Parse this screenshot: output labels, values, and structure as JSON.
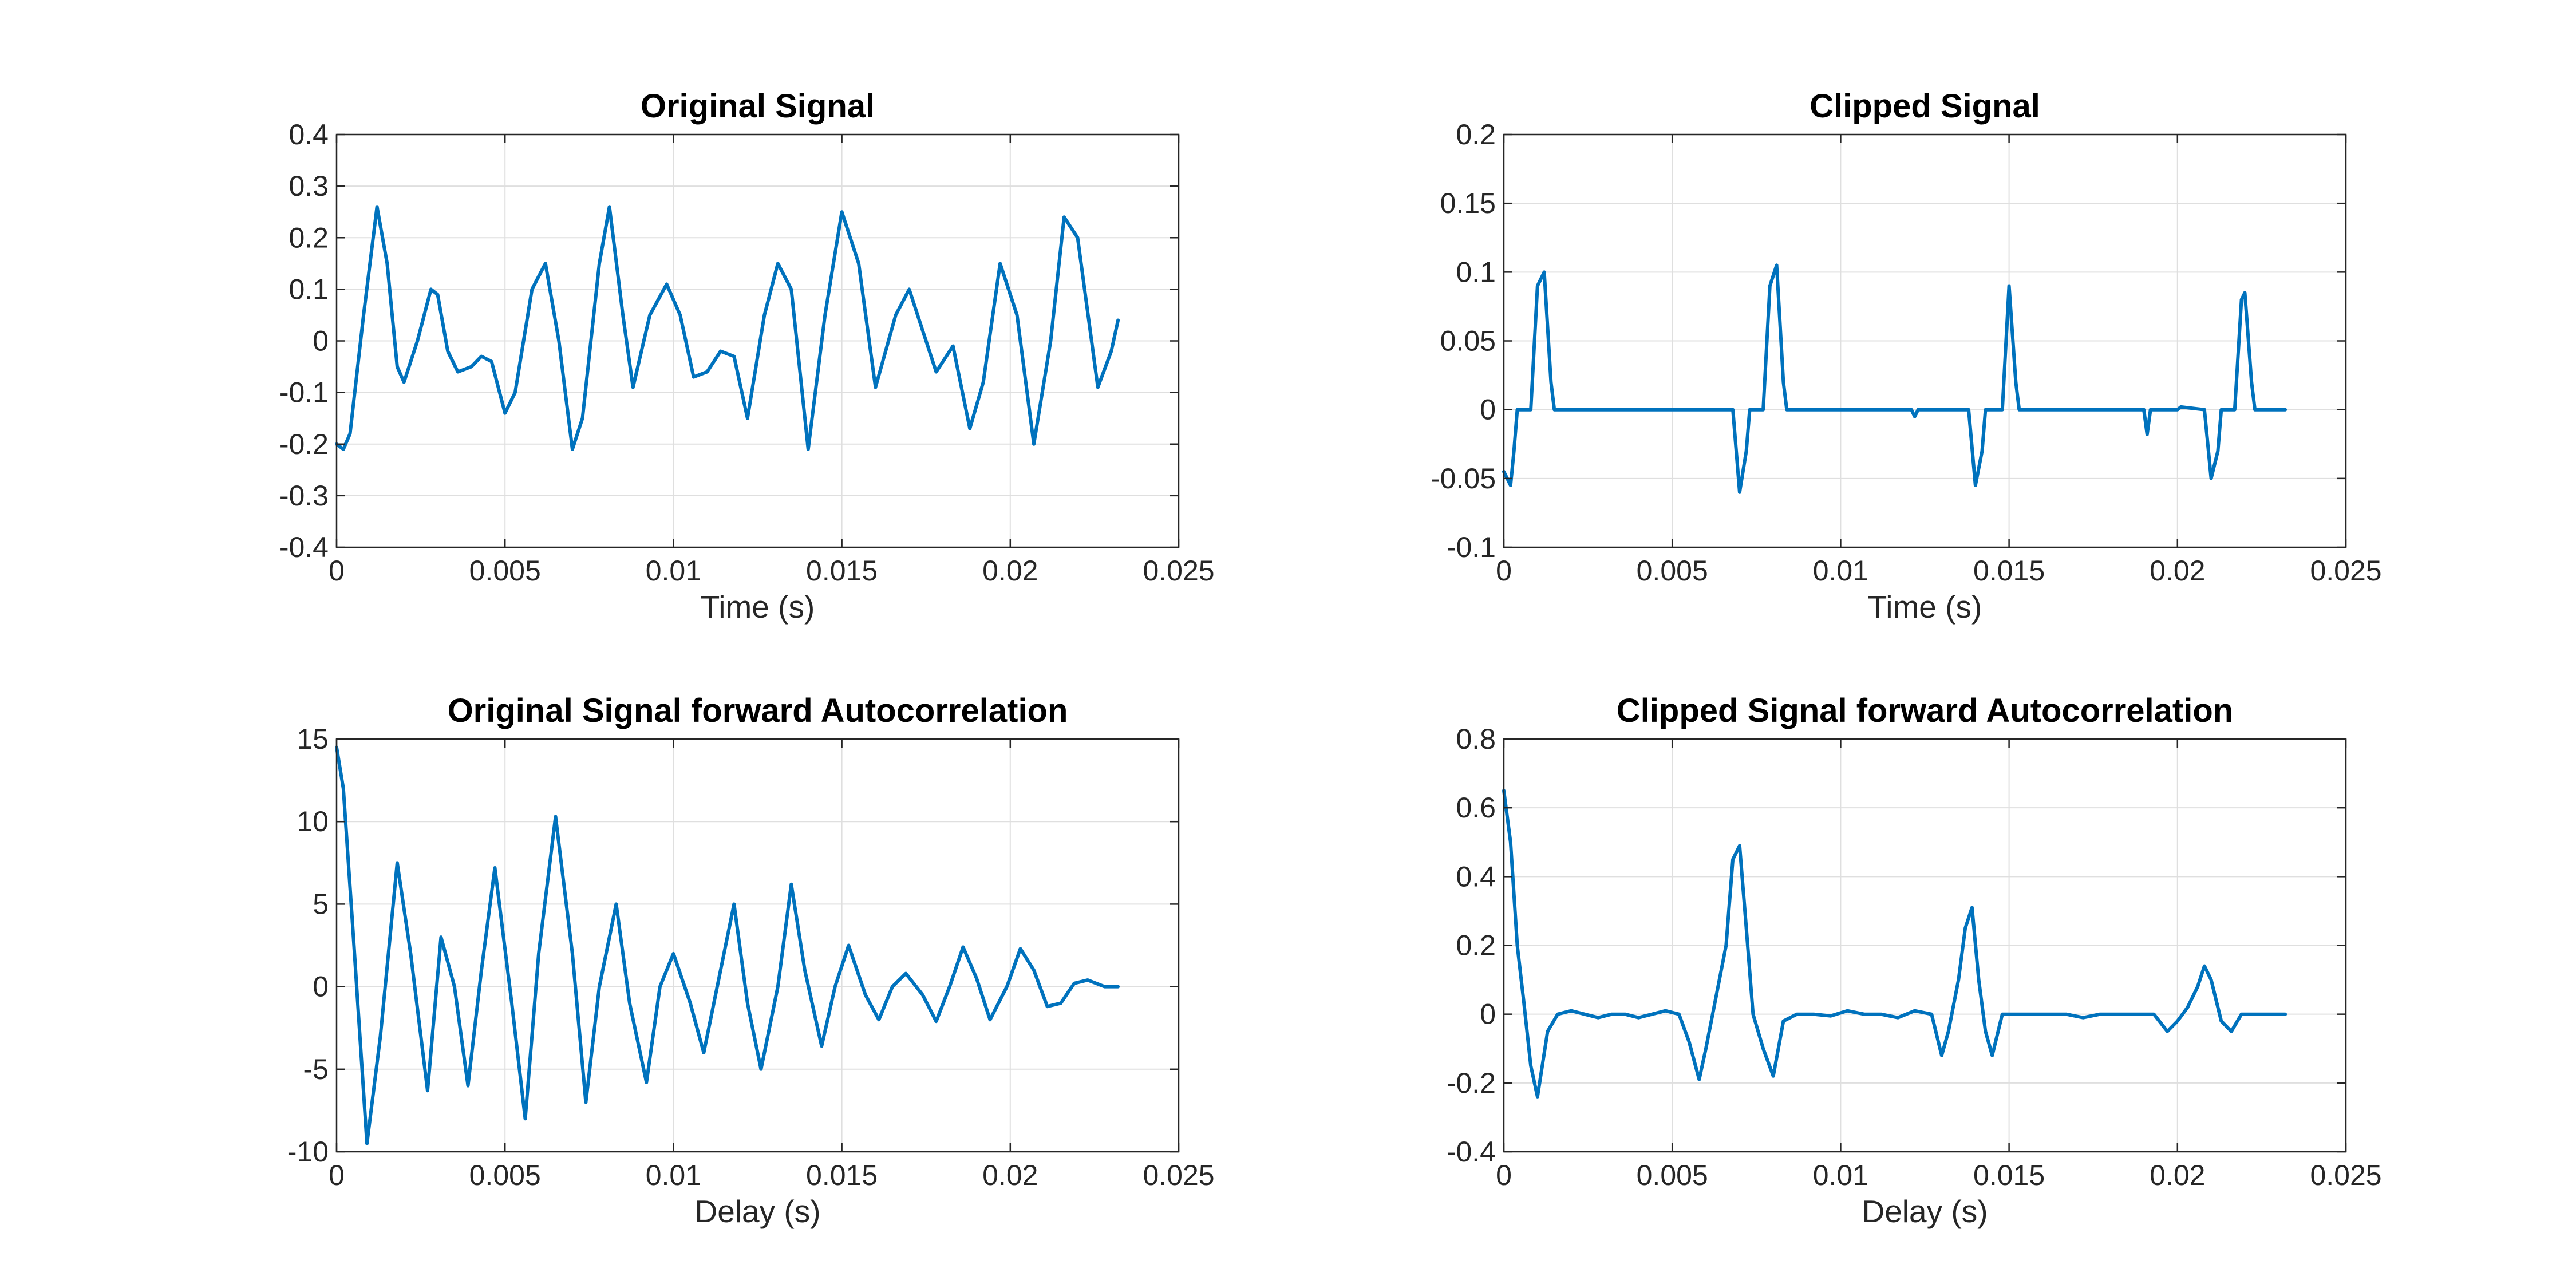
{
  "colors": {
    "series": "#0072bd"
  },
  "chart_data": [
    {
      "type": "line",
      "title": "Original Signal",
      "xlabel": "Time (s)",
      "ylabel": "",
      "xlim": [
        0,
        0.025
      ],
      "ylim": [
        -0.4,
        0.4
      ],
      "xticks": [
        0,
        0.005,
        0.01,
        0.015,
        0.02,
        0.025
      ],
      "yticks": [
        -0.4,
        -0.3,
        -0.2,
        -0.1,
        0,
        0.1,
        0.2,
        0.3,
        0.4
      ],
      "xtick_labels": [
        "0",
        "0.005",
        "0.01",
        "0.015",
        "0.02",
        "0.025"
      ],
      "ytick_labels": [
        "-0.4",
        "-0.3",
        "-0.2",
        "-0.1",
        "0",
        "0.1",
        "0.2",
        "0.3",
        "0.4"
      ],
      "grid": true,
      "series": [
        {
          "x": [
            0,
            0.0002,
            0.0004,
            0.0008,
            0.0012,
            0.0015,
            0.0018,
            0.002,
            0.0024,
            0.0028,
            0.003,
            0.0033,
            0.0036,
            0.004,
            0.0043,
            0.0046,
            0.005,
            0.0053,
            0.0058,
            0.0062,
            0.0066,
            0.007,
            0.0073,
            0.0078,
            0.0081,
            0.0085,
            0.0088,
            0.0093,
            0.0098,
            0.0102,
            0.0106,
            0.011,
            0.0114,
            0.0118,
            0.0122,
            0.0127,
            0.0131,
            0.0135,
            0.014,
            0.0145,
            0.015,
            0.0155,
            0.016,
            0.0166,
            0.017,
            0.0175,
            0.0178,
            0.0183,
            0.0188,
            0.0192,
            0.0197,
            0.0202,
            0.0207,
            0.0212,
            0.0216,
            0.022,
            0.0226,
            0.023,
            0.0232
          ],
          "y": [
            -0.2,
            -0.21,
            -0.18,
            0.05,
            0.26,
            0.15,
            -0.05,
            -0.08,
            0.0,
            0.1,
            0.09,
            -0.02,
            -0.06,
            -0.05,
            -0.03,
            -0.04,
            -0.14,
            -0.1,
            0.1,
            0.15,
            0.0,
            -0.21,
            -0.15,
            0.15,
            0.26,
            0.05,
            -0.09,
            0.05,
            0.11,
            0.05,
            -0.07,
            -0.06,
            -0.02,
            -0.03,
            -0.15,
            0.05,
            0.15,
            0.1,
            -0.21,
            0.05,
            0.25,
            0.15,
            -0.09,
            0.05,
            0.1,
            0.0,
            -0.06,
            -0.01,
            -0.17,
            -0.08,
            0.15,
            0.05,
            -0.2,
            0.0,
            0.24,
            0.2,
            -0.09,
            -0.02,
            0.04
          ]
        }
      ]
    },
    {
      "type": "line",
      "title": "Clipped Signal",
      "xlabel": "Time (s)",
      "ylabel": "",
      "xlim": [
        0,
        0.025
      ],
      "ylim": [
        -0.1,
        0.2
      ],
      "xticks": [
        0,
        0.005,
        0.01,
        0.015,
        0.02,
        0.025
      ],
      "yticks": [
        -0.1,
        -0.05,
        0,
        0.05,
        0.1,
        0.15,
        0.2
      ],
      "xtick_labels": [
        "0",
        "0.005",
        "0.01",
        "0.015",
        "0.02",
        "0.025"
      ],
      "ytick_labels": [
        "-0.1",
        "-0.05",
        "0",
        "0.05",
        "0.1",
        "0.15",
        "0.2"
      ],
      "grid": true,
      "series": [
        {
          "x": [
            0,
            0.0002,
            0.0003,
            0.0004,
            0.0008,
            0.001,
            0.0012,
            0.0014,
            0.0015,
            0.0068,
            0.007,
            0.0072,
            0.0073,
            0.0077,
            0.0079,
            0.0081,
            0.0083,
            0.0084,
            0.0121,
            0.0122,
            0.0123,
            0.0138,
            0.014,
            0.0142,
            0.0143,
            0.0148,
            0.015,
            0.0152,
            0.0153,
            0.019,
            0.0191,
            0.0192,
            0.02,
            0.0201,
            0.0208,
            0.021,
            0.0212,
            0.0213,
            0.0217,
            0.0219,
            0.022,
            0.0222,
            0.0223,
            0.0232
          ],
          "y": [
            -0.045,
            -0.055,
            -0.03,
            0,
            0,
            0.09,
            0.1,
            0.02,
            0,
            0,
            -0.06,
            -0.03,
            0,
            0,
            0.09,
            0.105,
            0.02,
            0,
            0,
            -0.005,
            0,
            0,
            -0.055,
            -0.03,
            0,
            0,
            0.09,
            0.02,
            0,
            0,
            -0.018,
            0,
            0,
            0.002,
            0,
            -0.05,
            -0.03,
            0,
            0,
            0.08,
            0.085,
            0.02,
            0,
            0
          ]
        }
      ]
    },
    {
      "type": "line",
      "title": "Original Signal forward Autocorrelation",
      "xlabel": "Delay (s)",
      "ylabel": "",
      "xlim": [
        0,
        0.025
      ],
      "ylim": [
        -10,
        15
      ],
      "xticks": [
        0,
        0.005,
        0.01,
        0.015,
        0.02,
        0.025
      ],
      "yticks": [
        -10,
        -5,
        0,
        5,
        10,
        15
      ],
      "xtick_labels": [
        "0",
        "0.005",
        "0.01",
        "0.015",
        "0.02",
        "0.025"
      ],
      "ytick_labels": [
        "-10",
        "-5",
        "0",
        "5",
        "10",
        "15"
      ],
      "grid": true,
      "series": [
        {
          "x": [
            0,
            0.0002,
            0.0005,
            0.0009,
            0.0013,
            0.0018,
            0.0022,
            0.0027,
            0.0031,
            0.0035,
            0.0039,
            0.0043,
            0.0047,
            0.0052,
            0.0056,
            0.006,
            0.0065,
            0.007,
            0.0074,
            0.0078,
            0.0083,
            0.0087,
            0.0092,
            0.0096,
            0.01,
            0.0105,
            0.0109,
            0.0113,
            0.0118,
            0.0122,
            0.0126,
            0.0131,
            0.0135,
            0.0139,
            0.0144,
            0.0148,
            0.0152,
            0.0157,
            0.0161,
            0.0165,
            0.0169,
            0.0174,
            0.0178,
            0.0182,
            0.0186,
            0.019,
            0.0194,
            0.0199,
            0.0203,
            0.0207,
            0.0211,
            0.0215,
            0.0219,
            0.0223,
            0.0228,
            0.0232
          ],
          "y": [
            14.5,
            12,
            3,
            -9.5,
            -3,
            7.5,
            2,
            -6.3,
            3,
            0,
            -6,
            1,
            7.2,
            -1,
            -8,
            2,
            10.3,
            2,
            -7,
            0,
            5,
            -1,
            -5.8,
            0,
            2,
            -1,
            -4,
            0,
            5,
            -1,
            -5,
            0,
            6.2,
            1,
            -3.6,
            0,
            2.5,
            -0.5,
            -2,
            0,
            0.8,
            -0.5,
            -2.1,
            0,
            2.4,
            0.5,
            -2,
            0,
            2.3,
            1,
            -1.2,
            -1,
            0.2,
            0.4,
            0,
            0
          ]
        }
      ]
    },
    {
      "type": "line",
      "title": "Clipped Signal forward Autocorrelation",
      "xlabel": "Delay (s)",
      "ylabel": "",
      "xlim": [
        0,
        0.025
      ],
      "ylim": [
        -0.4,
        0.8
      ],
      "xticks": [
        0,
        0.005,
        0.01,
        0.015,
        0.02,
        0.025
      ],
      "yticks": [
        -0.4,
        -0.2,
        0,
        0.2,
        0.4,
        0.6,
        0.8
      ],
      "xtick_labels": [
        "0",
        "0.005",
        "0.01",
        "0.015",
        "0.02",
        "0.025"
      ],
      "ytick_labels": [
        "-0.4",
        "-0.2",
        "0",
        "0.2",
        "0.4",
        "0.6",
        "0.8"
      ],
      "grid": true,
      "series": [
        {
          "x": [
            0,
            0.0002,
            0.0004,
            0.0006,
            0.0008,
            0.001,
            0.0013,
            0.0016,
            0.002,
            0.0024,
            0.0028,
            0.0032,
            0.0036,
            0.004,
            0.0044,
            0.0048,
            0.0052,
            0.0055,
            0.0058,
            0.006,
            0.0063,
            0.0066,
            0.0068,
            0.007,
            0.0072,
            0.0074,
            0.0077,
            0.008,
            0.0083,
            0.0087,
            0.0092,
            0.0097,
            0.0102,
            0.0107,
            0.0112,
            0.0117,
            0.0122,
            0.0127,
            0.013,
            0.0132,
            0.0135,
            0.0137,
            0.0139,
            0.0141,
            0.0143,
            0.0145,
            0.0148,
            0.0152,
            0.0157,
            0.0162,
            0.0167,
            0.0172,
            0.0177,
            0.0182,
            0.0188,
            0.0193,
            0.0197,
            0.02,
            0.0203,
            0.0206,
            0.0208,
            0.021,
            0.0213,
            0.0216,
            0.0219,
            0.0222,
            0.0227,
            0.0232
          ],
          "y": [
            0.65,
            0.5,
            0.2,
            0.03,
            -0.15,
            -0.24,
            -0.05,
            0.0,
            0.01,
            0.0,
            -0.01,
            0.0,
            0.0,
            -0.01,
            0.0,
            0.01,
            0.0,
            -0.08,
            -0.19,
            -0.1,
            0.05,
            0.2,
            0.45,
            0.49,
            0.25,
            0.0,
            -0.1,
            -0.18,
            -0.02,
            0.0,
            0.0,
            -0.005,
            0.01,
            0.0,
            0.0,
            -0.01,
            0.01,
            0.0,
            -0.12,
            -0.05,
            0.1,
            0.25,
            0.31,
            0.1,
            -0.05,
            -0.12,
            0.0,
            0.0,
            0.0,
            0.0,
            0.0,
            -0.01,
            0.0,
            0.0,
            0.0,
            0.0,
            -0.05,
            -0.02,
            0.02,
            0.08,
            0.14,
            0.1,
            -0.02,
            -0.05,
            0.0,
            0.0,
            0.0,
            0.0
          ]
        }
      ]
    }
  ]
}
